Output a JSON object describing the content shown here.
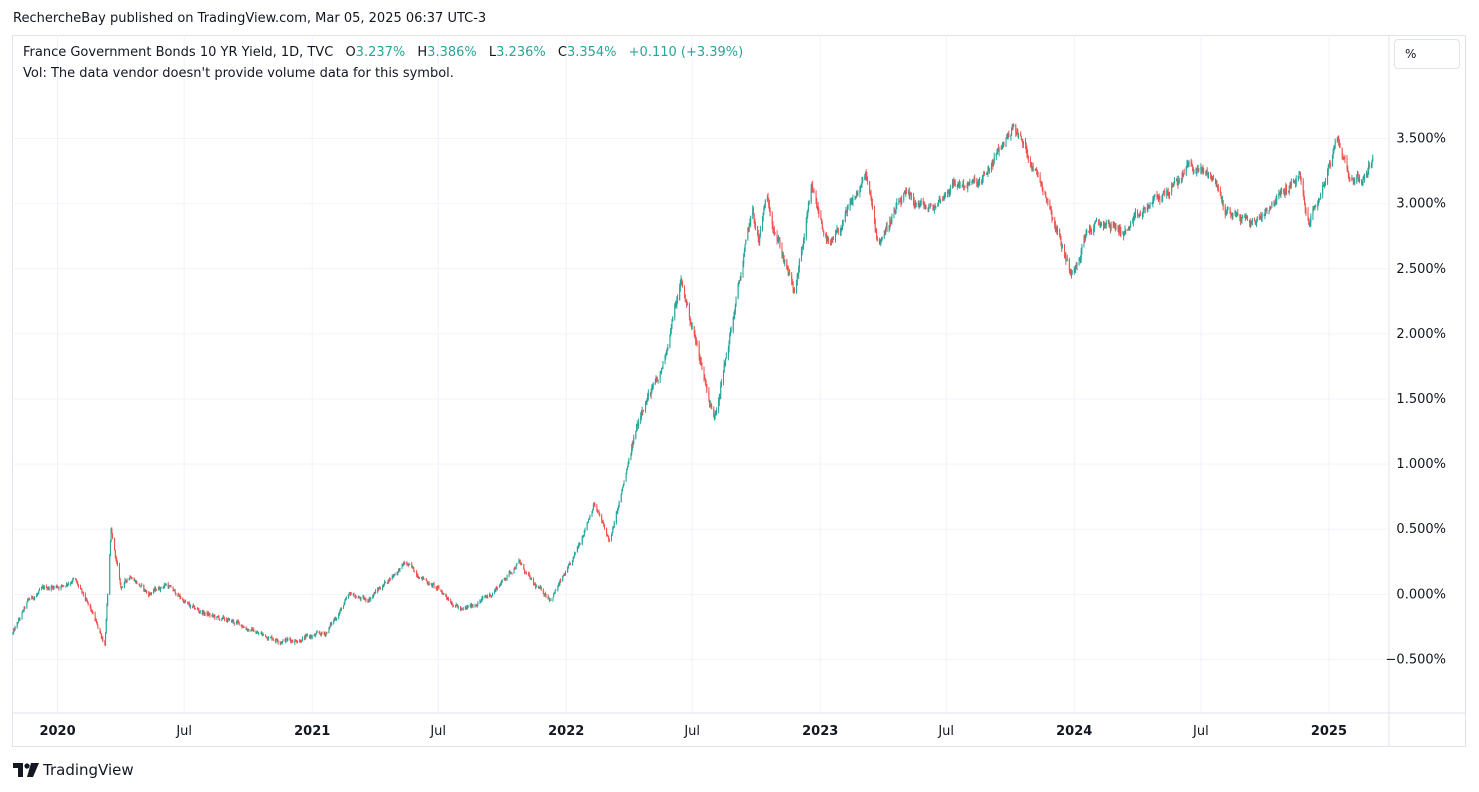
{
  "header": {
    "publisher": "RechercheBay published on TradingView.com, Mar 05, 2025 06:37 UTC-3"
  },
  "legend": {
    "symbol": "France Government Bonds 10 YR Yield, 1D, TVC",
    "open_label": "O",
    "open": "3.237%",
    "high_label": "H",
    "high": "3.386%",
    "low_label": "L",
    "low": "3.236%",
    "close_label": "C",
    "close": "3.354%",
    "change": "+0.110 (+3.39%)",
    "volume_note": "Vol: The data vendor doesn't provide volume data for this symbol."
  },
  "unit_button": "%",
  "footer": {
    "logo_text": "TradingView"
  },
  "colors": {
    "up": "#26a69a",
    "down": "#ef5350",
    "grid": "#f0f3fa",
    "axis_text": "#131722"
  },
  "chart_data": {
    "type": "candlestick",
    "interval": "1D",
    "yunit": "%",
    "ylim": [
      -0.85,
      3.95
    ],
    "xlim": [
      "2019-10-29",
      "2025-03-24"
    ],
    "y_ticks": [
      "3.500%",
      "3.000%",
      "2.500%",
      "2.000%",
      "1.500%",
      "1.000%",
      "0.500%",
      "0.000%",
      "−0.500%"
    ],
    "y_tick_values": [
      3.5,
      3.0,
      2.5,
      2.0,
      1.5,
      1.0,
      0.5,
      0.0,
      -0.5
    ],
    "x_ticks": [
      {
        "label": "2020",
        "date": "2020-01-01",
        "bold": true
      },
      {
        "label": "Jul",
        "date": "2020-07-01",
        "bold": false
      },
      {
        "label": "2021",
        "date": "2021-01-01",
        "bold": true
      },
      {
        "label": "Jul",
        "date": "2021-07-01",
        "bold": false
      },
      {
        "label": "2022",
        "date": "2022-01-01",
        "bold": true
      },
      {
        "label": "Jul",
        "date": "2022-07-01",
        "bold": false
      },
      {
        "label": "2023",
        "date": "2023-01-01",
        "bold": true
      },
      {
        "label": "Jul",
        "date": "2023-07-01",
        "bold": false
      },
      {
        "label": "2024",
        "date": "2024-01-01",
        "bold": true
      },
      {
        "label": "Jul",
        "date": "2024-07-01",
        "bold": false
      },
      {
        "label": "2025",
        "date": "2025-01-01",
        "bold": true
      }
    ],
    "close_path": [
      [
        "2019-10-29",
        -0.3
      ],
      [
        "2019-11-20",
        -0.05
      ],
      [
        "2019-12-15",
        0.05
      ],
      [
        "2020-01-10",
        0.07
      ],
      [
        "2020-01-25",
        0.12
      ],
      [
        "2020-02-20",
        -0.15
      ],
      [
        "2020-03-09",
        -0.38
      ],
      [
        "2020-03-18",
        0.48
      ],
      [
        "2020-04-01",
        0.05
      ],
      [
        "2020-04-15",
        0.15
      ],
      [
        "2020-05-10",
        0.0
      ],
      [
        "2020-06-05",
        0.08
      ],
      [
        "2020-07-10",
        -0.1
      ],
      [
        "2020-08-15",
        -0.18
      ],
      [
        "2020-09-15",
        -0.22
      ],
      [
        "2020-10-15",
        -0.3
      ],
      [
        "2020-11-15",
        -0.35
      ],
      [
        "2020-12-10",
        -0.35
      ],
      [
        "2021-01-20",
        -0.3
      ],
      [
        "2021-02-25",
        0.0
      ],
      [
        "2021-03-20",
        -0.05
      ],
      [
        "2021-05-15",
        0.24
      ],
      [
        "2021-06-10",
        0.12
      ],
      [
        "2021-07-10",
        0.0
      ],
      [
        "2021-08-05",
        -0.13
      ],
      [
        "2021-09-15",
        0.0
      ],
      [
        "2021-10-25",
        0.25
      ],
      [
        "2021-11-15",
        0.07
      ],
      [
        "2021-12-10",
        -0.03
      ],
      [
        "2022-01-10",
        0.25
      ],
      [
        "2022-02-10",
        0.7
      ],
      [
        "2022-03-05",
        0.4
      ],
      [
        "2022-04-20",
        1.45
      ],
      [
        "2022-05-15",
        1.65
      ],
      [
        "2022-06-15",
        2.4
      ],
      [
        "2022-07-15",
        1.75
      ],
      [
        "2022-08-01",
        1.35
      ],
      [
        "2022-08-20",
        1.85
      ],
      [
        "2022-09-25",
        2.95
      ],
      [
        "2022-10-05",
        2.7
      ],
      [
        "2022-10-15",
        3.05
      ],
      [
        "2022-11-25",
        2.3
      ],
      [
        "2022-12-20",
        3.1
      ],
      [
        "2023-01-15",
        2.65
      ],
      [
        "2023-03-08",
        3.22
      ],
      [
        "2023-03-25",
        2.7
      ],
      [
        "2023-05-01",
        3.05
      ],
      [
        "2023-06-10",
        2.95
      ],
      [
        "2023-07-10",
        3.15
      ],
      [
        "2023-08-20",
        3.15
      ],
      [
        "2023-09-25",
        3.5
      ],
      [
        "2023-10-05",
        3.6
      ],
      [
        "2023-10-25",
        3.4
      ],
      [
        "2023-11-20",
        3.1
      ],
      [
        "2023-12-28",
        2.45
      ],
      [
        "2024-01-20",
        2.8
      ],
      [
        "2024-02-15",
        2.85
      ],
      [
        "2024-03-15",
        2.78
      ],
      [
        "2024-04-20",
        3.0
      ],
      [
        "2024-05-28",
        3.15
      ],
      [
        "2024-06-12",
        3.3
      ],
      [
        "2024-07-20",
        3.2
      ],
      [
        "2024-08-05",
        2.95
      ],
      [
        "2024-09-15",
        2.85
      ],
      [
        "2024-10-10",
        3.0
      ],
      [
        "2024-11-20",
        3.2
      ],
      [
        "2024-12-02",
        2.85
      ],
      [
        "2024-12-15",
        3.0
      ],
      [
        "2025-01-14",
        3.48
      ],
      [
        "2025-02-01",
        3.2
      ],
      [
        "2025-02-20",
        3.18
      ],
      [
        "2025-03-05",
        3.354
      ]
    ]
  }
}
